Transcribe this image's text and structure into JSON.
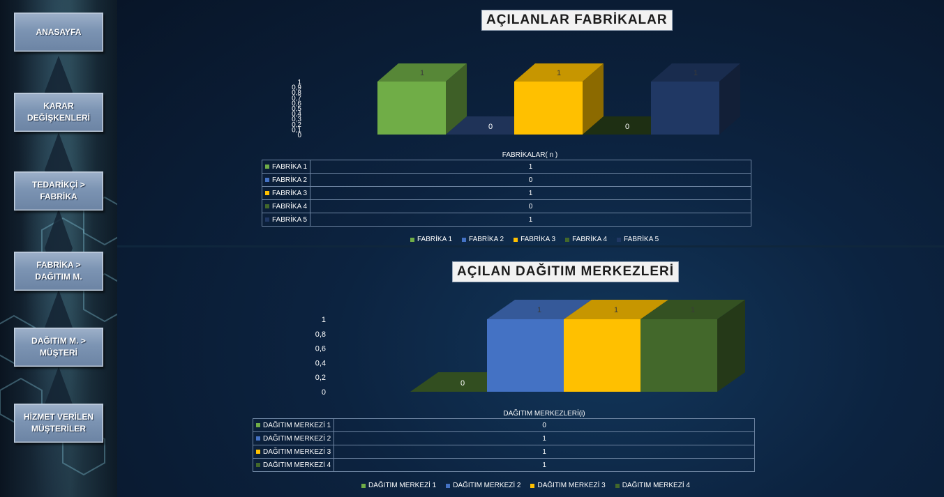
{
  "nav": [
    {
      "label": "ANASAYFA"
    },
    {
      "label": "KARAR\nDEĞİŞKENLERİ"
    },
    {
      "label": "TEDARİKÇİ >\nFABRİKA"
    },
    {
      "label": "FABRİKA >\nDAĞITIM M."
    },
    {
      "label": "DAĞITIM M. >\nMÜŞTERİ"
    },
    {
      "label": "HİZMET VERİLEN\nMÜŞTERİLER"
    }
  ],
  "chart_data": [
    {
      "type": "bar",
      "title": "AÇILANLAR FABRİKALAR",
      "xlabel": "FABRİKALAR( n )",
      "categories": [
        "FABRİKA 1",
        "FABRİKA 2",
        "FABRİKA 3",
        "FABRİKA 4",
        "FABRİKA 5"
      ],
      "values": [
        1,
        0,
        1,
        0,
        1
      ],
      "colors": [
        "#70ad47",
        "#4472c4",
        "#ffc000",
        "#43682b",
        "#203864"
      ],
      "y_ticks": [
        "0",
        "0,1",
        "0,2",
        "0,3",
        "0,4",
        "0,5",
        "0,6",
        "0,7",
        "0,8",
        "0,9",
        "1"
      ],
      "ylim": [
        0,
        1
      ],
      "data_labels": [
        "1",
        "0",
        "1",
        "0",
        "1"
      ],
      "legend": "bottom",
      "data_table": true
    },
    {
      "type": "bar",
      "title": "AÇILAN DAĞITIM MERKEZLERİ",
      "xlabel": "DAĞITIM MERKEZLERİ(i)",
      "categories": [
        "DAĞITIM MERKEZİ 1",
        "DAĞITIM MERKEZİ 2",
        "DAĞITIM MERKEZİ 3",
        "DAĞITIM MERKEZİ 4"
      ],
      "values": [
        0,
        1,
        1,
        1
      ],
      "colors": [
        "#70ad47",
        "#4472c4",
        "#ffc000",
        "#43682b"
      ],
      "y_ticks": [
        "0",
        "0,2",
        "0,4",
        "0,6",
        "0,8",
        "1"
      ],
      "ylim": [
        0,
        1
      ],
      "data_labels": [
        "0",
        "1",
        "1",
        "1"
      ],
      "legend": "bottom",
      "data_table": true
    }
  ]
}
